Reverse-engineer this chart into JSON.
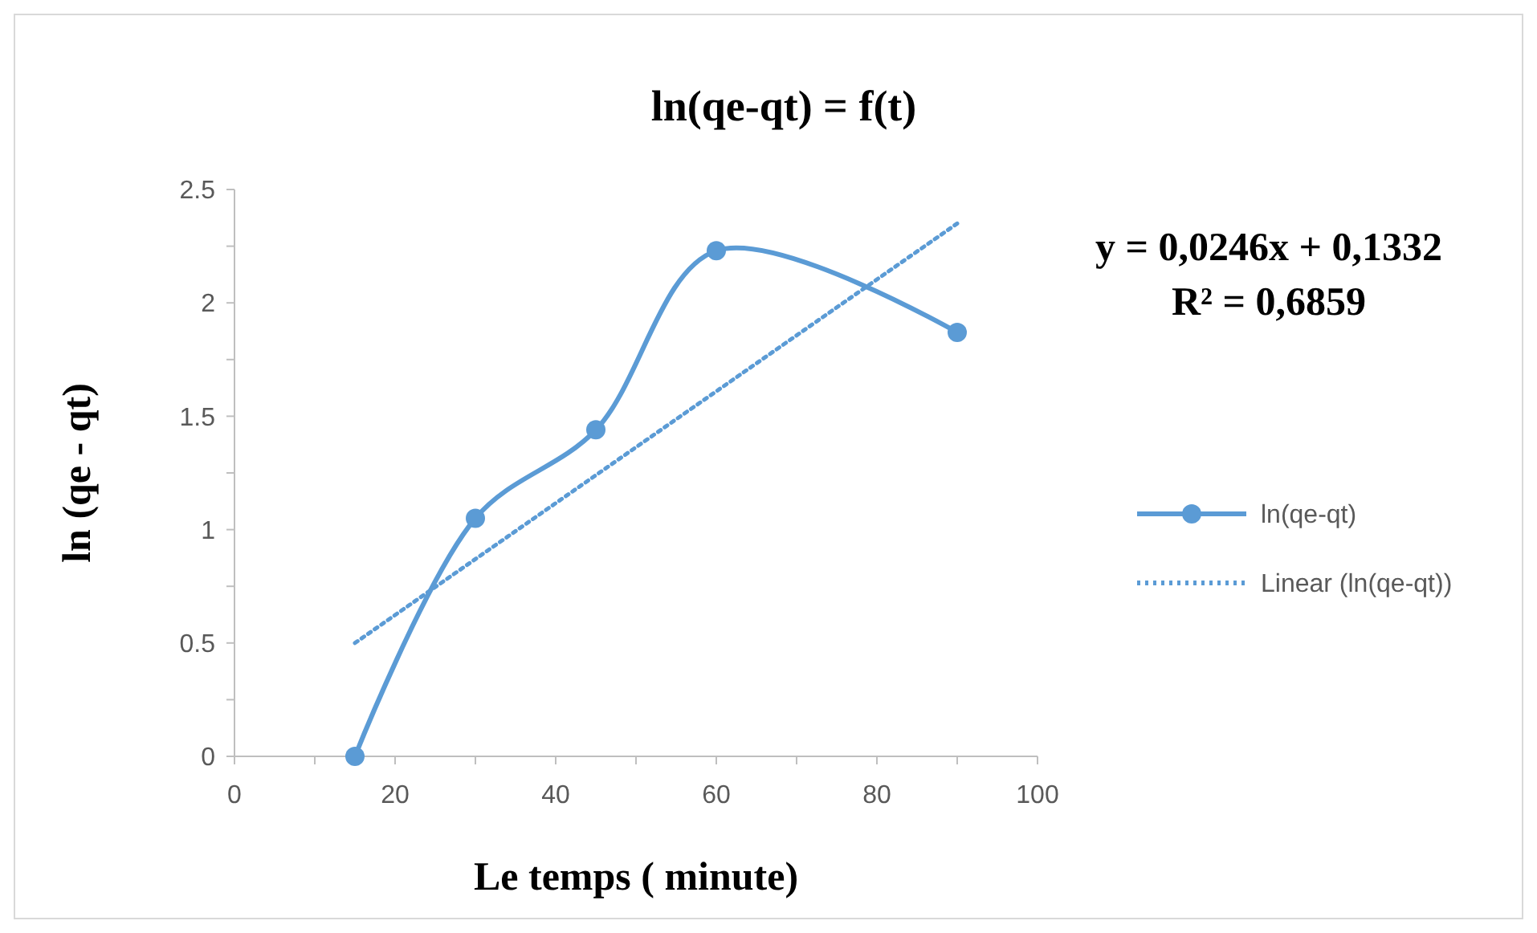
{
  "chart_data": {
    "type": "line",
    "title": "ln(qe-qt) = f(t)",
    "xlabel": "Le temps ( minute)",
    "ylabel": "ln (qe - qt)",
    "xlim": [
      0,
      100
    ],
    "xticks": [
      0,
      {
        "value": 10,
        "label": null
      },
      20,
      {
        "value": 30,
        "label": null
      },
      40,
      {
        "value": 50,
        "label": null
      },
      60,
      {
        "value": 70,
        "label": null
      },
      80,
      {
        "value": 90,
        "label": null
      },
      100
    ],
    "ylim": [
      0,
      2.5
    ],
    "yticks": [
      0,
      {
        "value": 0.25,
        "label": null
      },
      0.5,
      {
        "value": 0.75,
        "label": null
      },
      1,
      {
        "value": 1.25,
        "label": null
      },
      1.5,
      {
        "value": 1.75,
        "label": null
      },
      2,
      {
        "value": 2.25,
        "label": null
      },
      2.5
    ],
    "grid": false,
    "legend": "right",
    "series": [
      {
        "name": "ln(qe-qt)",
        "color": "#5b9bd5",
        "x": [
          15,
          30,
          45,
          60,
          90
        ],
        "values": [
          0,
          1.05,
          1.44,
          2.23,
          1.87
        ],
        "marker": "circle",
        "line_style": "solid"
      },
      {
        "name": "Linear (ln(qe-qt))",
        "color": "#5b9bd5",
        "x": [
          15,
          90
        ],
        "values": [
          0.5,
          2.35
        ],
        "marker": "none",
        "line_style": "dotted"
      }
    ],
    "annotations": [
      "y = 0,0246x + 0,1332",
      "R² = 0,6859"
    ]
  }
}
